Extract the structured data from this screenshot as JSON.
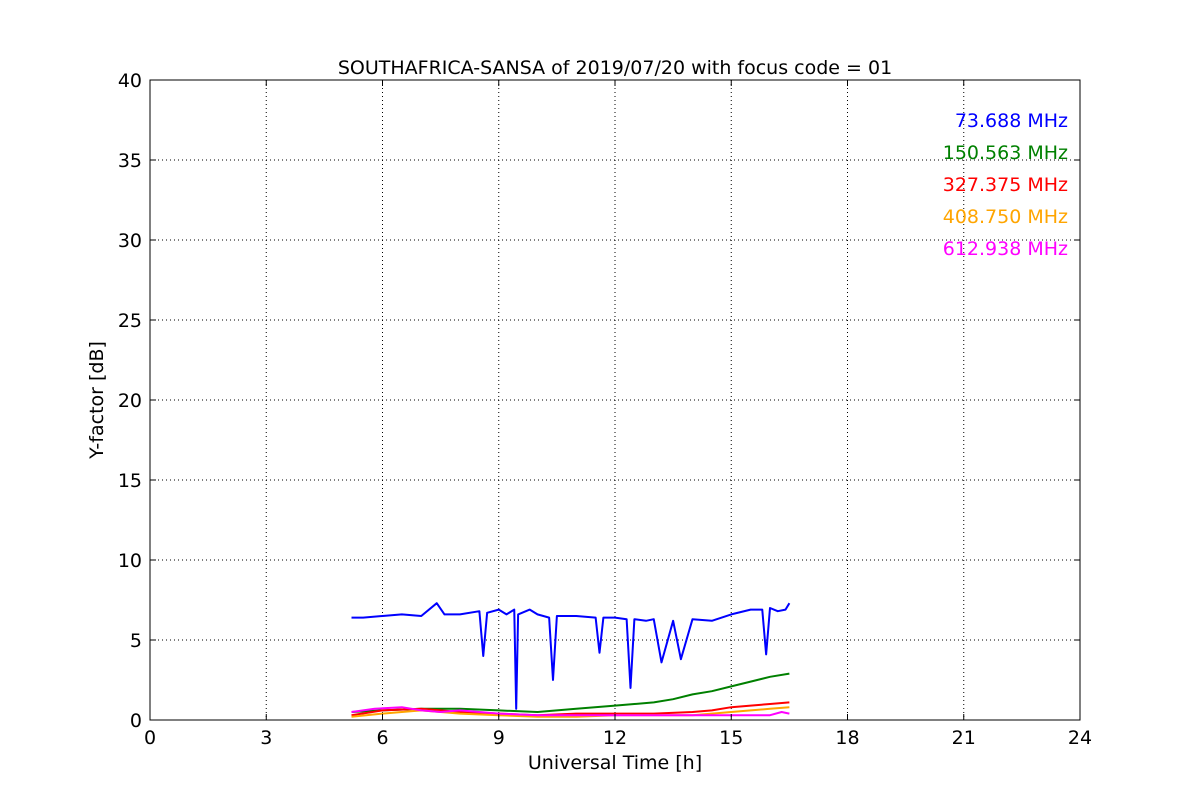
{
  "chart_data": {
    "type": "line",
    "title": "SOUTHAFRICA-SANSA of 2019/07/20 with focus code = 01",
    "xlabel": "Universal Time [h]",
    "ylabel": "Y-factor [dB]",
    "xlim": [
      0,
      24
    ],
    "ylim": [
      0,
      40
    ],
    "xticks": [
      0,
      3,
      6,
      9,
      12,
      15,
      18,
      21,
      24
    ],
    "yticks": [
      0,
      5,
      10,
      15,
      20,
      25,
      30,
      35,
      40
    ],
    "grid": true,
    "legend_position": "top-right",
    "series": [
      {
        "name": "73.688 MHz",
        "color": "#0000ff",
        "x": [
          5.2,
          5.5,
          6.0,
          6.5,
          7.0,
          7.4,
          7.6,
          8.0,
          8.5,
          8.6,
          8.7,
          9.0,
          9.2,
          9.4,
          9.45,
          9.5,
          9.8,
          10.0,
          10.3,
          10.4,
          10.5,
          11.0,
          11.5,
          11.6,
          11.7,
          12.0,
          12.3,
          12.4,
          12.5,
          12.8,
          13.0,
          13.2,
          13.5,
          13.7,
          14.0,
          14.5,
          15.0,
          15.5,
          15.8,
          15.9,
          16.0,
          16.2,
          16.4,
          16.5
        ],
        "y": [
          6.4,
          6.4,
          6.5,
          6.6,
          6.5,
          7.3,
          6.6,
          6.6,
          6.8,
          4.0,
          6.7,
          6.9,
          6.6,
          6.9,
          0.7,
          6.6,
          6.9,
          6.6,
          6.4,
          2.5,
          6.5,
          6.5,
          6.4,
          4.2,
          6.4,
          6.4,
          6.3,
          2.0,
          6.3,
          6.2,
          6.3,
          3.6,
          6.2,
          3.8,
          6.3,
          6.2,
          6.6,
          6.9,
          6.9,
          4.1,
          7.0,
          6.8,
          6.9,
          7.3
        ]
      },
      {
        "name": "150.563 MHz",
        "color": "#008000",
        "x": [
          5.2,
          6.0,
          7.0,
          8.0,
          9.0,
          10.0,
          11.0,
          12.0,
          12.5,
          13.0,
          13.5,
          14.0,
          14.5,
          15.0,
          15.5,
          16.0,
          16.5
        ],
        "y": [
          0.5,
          0.6,
          0.7,
          0.7,
          0.6,
          0.5,
          0.7,
          0.9,
          1.0,
          1.1,
          1.3,
          1.6,
          1.8,
          2.1,
          2.4,
          2.7,
          2.9
        ]
      },
      {
        "name": "327.375 MHz",
        "color": "#ff0000",
        "x": [
          5.2,
          6.0,
          7.0,
          8.0,
          9.0,
          10.0,
          11.0,
          12.0,
          13.0,
          14.0,
          14.5,
          15.0,
          15.5,
          16.0,
          16.5
        ],
        "y": [
          0.3,
          0.6,
          0.7,
          0.5,
          0.4,
          0.3,
          0.4,
          0.4,
          0.4,
          0.5,
          0.6,
          0.8,
          0.9,
          1.0,
          1.1
        ]
      },
      {
        "name": "408.750 MHz",
        "color": "#ffa500",
        "x": [
          5.2,
          6.0,
          7.0,
          8.0,
          9.0,
          10.0,
          11.0,
          12.0,
          13.0,
          14.0,
          15.0,
          15.5,
          16.0,
          16.5
        ],
        "y": [
          0.2,
          0.4,
          0.6,
          0.4,
          0.3,
          0.2,
          0.2,
          0.3,
          0.3,
          0.3,
          0.5,
          0.6,
          0.7,
          0.8
        ]
      },
      {
        "name": "612.938 MHz",
        "color": "#ff00ff",
        "x": [
          5.2,
          5.8,
          6.5,
          7.0,
          7.5,
          8.0,
          8.5,
          9.0,
          10.0,
          11.0,
          12.0,
          13.0,
          14.0,
          15.0,
          16.0,
          16.3,
          16.5
        ],
        "y": [
          0.5,
          0.7,
          0.8,
          0.6,
          0.5,
          0.6,
          0.5,
          0.4,
          0.3,
          0.3,
          0.3,
          0.3,
          0.3,
          0.3,
          0.3,
          0.5,
          0.4
        ]
      }
    ]
  }
}
